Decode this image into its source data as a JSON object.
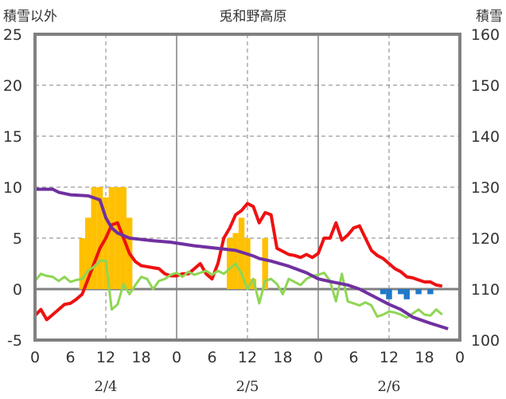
{
  "chart_data": {
    "type": "line",
    "title": "兎和野高原",
    "left_axis_label": "積雪以外",
    "right_axis_label": "積雪",
    "left_ylim": [
      -5,
      25
    ],
    "right_ylim": [
      100,
      160
    ],
    "left_ticks": [
      "25",
      "20",
      "15",
      "10",
      "5",
      "0",
      "-5"
    ],
    "right_ticks": [
      "160",
      "150",
      "140",
      "130",
      "120",
      "110",
      "100"
    ],
    "x_range": [
      0,
      72
    ],
    "x_ticks": [
      "0",
      "6",
      "12",
      "18",
      "0",
      "6",
      "12",
      "18",
      "0",
      "6",
      "12",
      "18",
      "0"
    ],
    "day_labels": [
      "2/4",
      "2/5",
      "2/6"
    ],
    "grid": true,
    "colors": {
      "red": "#ee1111",
      "green": "#8ed654",
      "purple": "#7030a0",
      "orange": "#ffc000",
      "blue": "#1f78c8"
    },
    "series": [
      {
        "color": "orange",
        "kind": "bar",
        "values": [
          [
            8,
            5
          ],
          [
            9,
            7
          ],
          [
            10,
            10
          ],
          [
            11,
            10
          ],
          [
            12,
            9
          ],
          [
            13,
            10
          ],
          [
            14,
            10
          ],
          [
            15,
            10
          ],
          [
            16,
            7
          ],
          [
            33,
            5
          ],
          [
            34,
            5.5
          ],
          [
            35,
            7
          ],
          [
            36,
            5
          ],
          [
            37,
            1
          ],
          [
            39,
            5
          ]
        ]
      },
      {
        "color": "blue",
        "kind": "bar",
        "values": [
          [
            59,
            -0.5
          ],
          [
            60,
            -1
          ],
          [
            62,
            -0.5
          ],
          [
            63,
            -1
          ],
          [
            65,
            -0.5
          ],
          [
            67,
            -0.5
          ]
        ]
      },
      {
        "color": "red",
        "kind": "line",
        "values": [
          [
            0,
            -2.6
          ],
          [
            1,
            -2
          ],
          [
            2,
            -3
          ],
          [
            3,
            -2.5
          ],
          [
            4,
            -2
          ],
          [
            5,
            -1.5
          ],
          [
            6,
            -1.4
          ],
          [
            7,
            -1
          ],
          [
            8,
            -0.5
          ],
          [
            9,
            1
          ],
          [
            10,
            2.5
          ],
          [
            11,
            4
          ],
          [
            12,
            5
          ],
          [
            13,
            6.3
          ],
          [
            14,
            6.5
          ],
          [
            15,
            5
          ],
          [
            16,
            3.5
          ],
          [
            17,
            2.7
          ],
          [
            18,
            2.3
          ],
          [
            19,
            2.2
          ],
          [
            20,
            2.1
          ],
          [
            21,
            2
          ],
          [
            22,
            1.5
          ],
          [
            23,
            1.3
          ],
          [
            24,
            1.3
          ],
          [
            25,
            1.5
          ],
          [
            26,
            1.5
          ],
          [
            27,
            2
          ],
          [
            28,
            2.5
          ],
          [
            29,
            1.5
          ],
          [
            30,
            1
          ],
          [
            31,
            2.5
          ],
          [
            32,
            5
          ],
          [
            33,
            6
          ],
          [
            34,
            7.3
          ],
          [
            35,
            7.7
          ],
          [
            36,
            8.4
          ],
          [
            37,
            8.1
          ],
          [
            38,
            6.5
          ],
          [
            39,
            7.5
          ],
          [
            40,
            7.3
          ],
          [
            41,
            4
          ],
          [
            42,
            3.7
          ],
          [
            43,
            3.4
          ],
          [
            44,
            3.3
          ],
          [
            45,
            3.1
          ],
          [
            46,
            3.4
          ],
          [
            47,
            3.1
          ],
          [
            48,
            3.5
          ],
          [
            49,
            5
          ],
          [
            50,
            5
          ],
          [
            51,
            6.5
          ],
          [
            52,
            4.8
          ],
          [
            53,
            5.3
          ],
          [
            54,
            6
          ],
          [
            55,
            6.2
          ],
          [
            56,
            5
          ],
          [
            57,
            3.8
          ],
          [
            58,
            3.3
          ],
          [
            59,
            3
          ],
          [
            60,
            2.5
          ],
          [
            61,
            2
          ],
          [
            62,
            1.7
          ],
          [
            63,
            1.2
          ],
          [
            64,
            1.1
          ],
          [
            65,
            0.9
          ],
          [
            66,
            0.7
          ],
          [
            67,
            0.7
          ],
          [
            68,
            0.4
          ],
          [
            69,
            0.3
          ]
        ]
      },
      {
        "color": "green",
        "kind": "line",
        "values": [
          [
            0,
            0.8
          ],
          [
            1,
            1.5
          ],
          [
            2,
            1.3
          ],
          [
            3,
            1.2
          ],
          [
            4,
            0.8
          ],
          [
            5,
            1.2
          ],
          [
            6,
            0.7
          ],
          [
            7,
            0.9
          ],
          [
            8,
            1
          ],
          [
            9,
            1.8
          ],
          [
            10,
            2.2
          ],
          [
            11,
            2.8
          ],
          [
            12,
            2.8
          ],
          [
            13,
            -2
          ],
          [
            14,
            -1.5
          ],
          [
            15,
            0.5
          ],
          [
            16,
            -0.5
          ],
          [
            17,
            0.4
          ],
          [
            18,
            1.2
          ],
          [
            19,
            1
          ],
          [
            20,
            0
          ],
          [
            21,
            0.8
          ],
          [
            22,
            1
          ],
          [
            23,
            1.4
          ],
          [
            24,
            1.6
          ],
          [
            25,
            1.2
          ],
          [
            26,
            1.7
          ],
          [
            27,
            1.4
          ],
          [
            28,
            1.6
          ],
          [
            29,
            1.8
          ],
          [
            30,
            1.4
          ],
          [
            31,
            1.8
          ],
          [
            32,
            1.5
          ],
          [
            33,
            2
          ],
          [
            34,
            2.5
          ],
          [
            35,
            1.5
          ],
          [
            36,
            0
          ],
          [
            37,
            1
          ],
          [
            38,
            -1.4
          ],
          [
            39,
            0.8
          ],
          [
            40,
            1
          ],
          [
            41,
            0.5
          ],
          [
            42,
            -0.5
          ],
          [
            43,
            1
          ],
          [
            44,
            0.7
          ],
          [
            45,
            0.4
          ],
          [
            46,
            1
          ],
          [
            47,
            1.3
          ],
          [
            48,
            1.4
          ],
          [
            49,
            1.6
          ],
          [
            50,
            0.8
          ],
          [
            51,
            -1.2
          ],
          [
            52,
            1.5
          ],
          [
            53,
            -1.2
          ],
          [
            54,
            -1.4
          ],
          [
            55,
            -1.6
          ],
          [
            56,
            -1.3
          ],
          [
            57,
            -1.6
          ],
          [
            58,
            -2.7
          ],
          [
            59,
            -2.5
          ],
          [
            60,
            -2.2
          ],
          [
            61,
            -2.3
          ],
          [
            62,
            -2.5
          ],
          [
            63,
            -2.8
          ],
          [
            64,
            -2.4
          ],
          [
            65,
            -2
          ],
          [
            66,
            -2.5
          ],
          [
            67,
            -2.6
          ],
          [
            68,
            -2
          ],
          [
            69,
            -2.5
          ]
        ]
      },
      {
        "color": "purple",
        "kind": "line",
        "values": [
          [
            0,
            129.6
          ],
          [
            3,
            129.6
          ],
          [
            4,
            129
          ],
          [
            6,
            128.5
          ],
          [
            9,
            128.3
          ],
          [
            11,
            127.5
          ],
          [
            12,
            124
          ],
          [
            13,
            122
          ],
          [
            14,
            121
          ],
          [
            16,
            120
          ],
          [
            20,
            119.5
          ],
          [
            23,
            119.2
          ],
          [
            27,
            118.5
          ],
          [
            34,
            117.6
          ],
          [
            37,
            116.5
          ],
          [
            38,
            116
          ],
          [
            40,
            115.5
          ],
          [
            43,
            114.5
          ],
          [
            46,
            113.2
          ],
          [
            48,
            112
          ],
          [
            50,
            111.5
          ],
          [
            53,
            110.8
          ],
          [
            55,
            110
          ],
          [
            58,
            108.2
          ],
          [
            60,
            107
          ],
          [
            62,
            106
          ],
          [
            64,
            104.5
          ],
          [
            66,
            103.7
          ],
          [
            67,
            103.3
          ],
          [
            70,
            102.2
          ]
        ]
      }
    ]
  }
}
